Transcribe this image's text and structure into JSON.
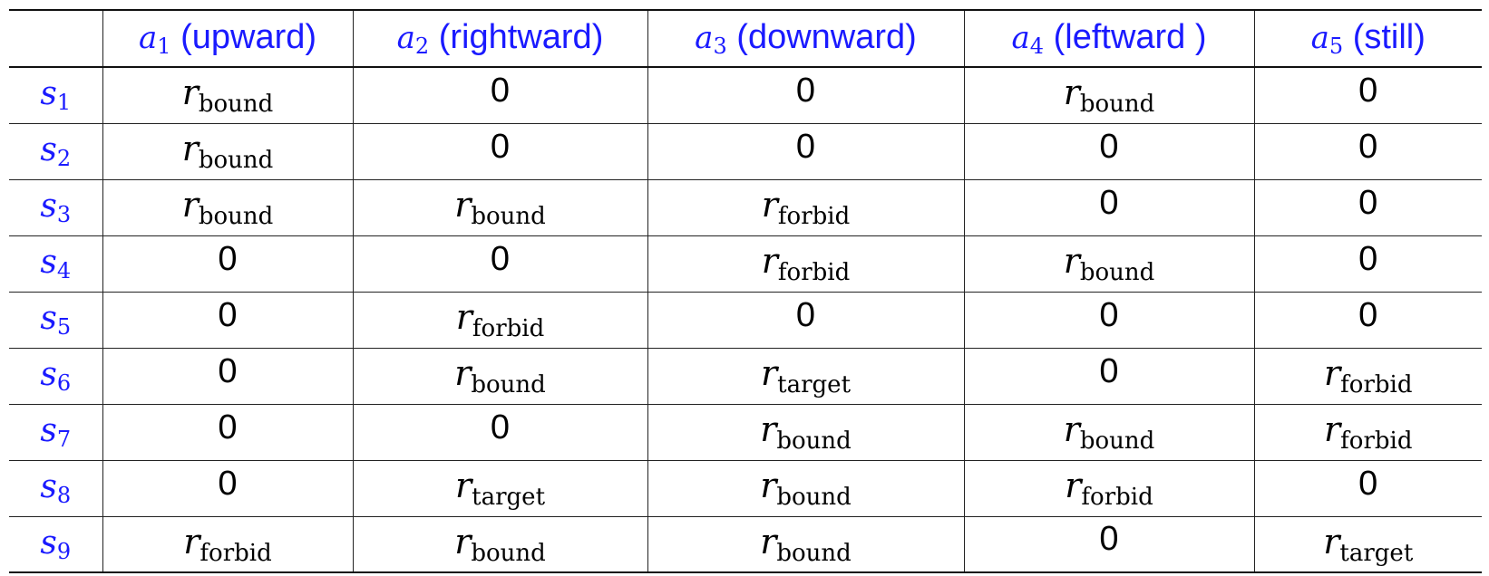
{
  "table": {
    "header_corner": "",
    "columns": [
      {
        "symbol": "a",
        "index": "1",
        "label": "(upward)"
      },
      {
        "symbol": "a",
        "index": "2",
        "label": "(rightward)"
      },
      {
        "symbol": "a",
        "index": "3",
        "label": "(downward)"
      },
      {
        "symbol": "a",
        "index": "4",
        "label": "(leftward )"
      },
      {
        "symbol": "a",
        "index": "5",
        "label": "(still)"
      }
    ],
    "rows": [
      {
        "symbol": "s",
        "index": "1",
        "cells": [
          {
            "type": "r",
            "main": "r",
            "sub": "bound"
          },
          {
            "type": "zero",
            "text": "0"
          },
          {
            "type": "zero",
            "text": "0"
          },
          {
            "type": "r",
            "main": "r",
            "sub": "bound"
          },
          {
            "type": "zero",
            "text": "0"
          }
        ]
      },
      {
        "symbol": "s",
        "index": "2",
        "cells": [
          {
            "type": "r",
            "main": "r",
            "sub": "bound"
          },
          {
            "type": "zero",
            "text": "0"
          },
          {
            "type": "zero",
            "text": "0"
          },
          {
            "type": "zero",
            "text": "0"
          },
          {
            "type": "zero",
            "text": "0"
          }
        ]
      },
      {
        "symbol": "s",
        "index": "3",
        "cells": [
          {
            "type": "r",
            "main": "r",
            "sub": "bound"
          },
          {
            "type": "r",
            "main": "r",
            "sub": "bound"
          },
          {
            "type": "r",
            "main": "r",
            "sub": "forbid"
          },
          {
            "type": "zero",
            "text": "0"
          },
          {
            "type": "zero",
            "text": "0"
          }
        ]
      },
      {
        "symbol": "s",
        "index": "4",
        "cells": [
          {
            "type": "zero",
            "text": "0"
          },
          {
            "type": "zero",
            "text": "0"
          },
          {
            "type": "r",
            "main": "r",
            "sub": "forbid"
          },
          {
            "type": "r",
            "main": "r",
            "sub": "bound"
          },
          {
            "type": "zero",
            "text": "0"
          }
        ]
      },
      {
        "symbol": "s",
        "index": "5",
        "cells": [
          {
            "type": "zero",
            "text": "0"
          },
          {
            "type": "r",
            "main": "r",
            "sub": "forbid"
          },
          {
            "type": "zero",
            "text": "0"
          },
          {
            "type": "zero",
            "text": "0"
          },
          {
            "type": "zero",
            "text": "0"
          }
        ]
      },
      {
        "symbol": "s",
        "index": "6",
        "cells": [
          {
            "type": "zero",
            "text": "0"
          },
          {
            "type": "r",
            "main": "r",
            "sub": "bound"
          },
          {
            "type": "r",
            "main": "r",
            "sub": "target"
          },
          {
            "type": "zero",
            "text": "0"
          },
          {
            "type": "r",
            "main": "r",
            "sub": "forbid"
          }
        ]
      },
      {
        "symbol": "s",
        "index": "7",
        "cells": [
          {
            "type": "zero",
            "text": "0"
          },
          {
            "type": "zero",
            "text": "0"
          },
          {
            "type": "r",
            "main": "r",
            "sub": "bound"
          },
          {
            "type": "r",
            "main": "r",
            "sub": "bound"
          },
          {
            "type": "r",
            "main": "r",
            "sub": "forbid"
          }
        ]
      },
      {
        "symbol": "s",
        "index": "8",
        "cells": [
          {
            "type": "zero",
            "text": "0"
          },
          {
            "type": "r",
            "main": "r",
            "sub": "target"
          },
          {
            "type": "r",
            "main": "r",
            "sub": "bound"
          },
          {
            "type": "r",
            "main": "r",
            "sub": "forbid"
          },
          {
            "type": "zero",
            "text": "0"
          }
        ]
      },
      {
        "symbol": "s",
        "index": "9",
        "cells": [
          {
            "type": "r",
            "main": "r",
            "sub": "forbid"
          },
          {
            "type": "r",
            "main": "r",
            "sub": "bound"
          },
          {
            "type": "r",
            "main": "r",
            "sub": "bound"
          },
          {
            "type": "zero",
            "text": "0"
          },
          {
            "type": "r",
            "main": "r",
            "sub": "target"
          }
        ]
      }
    ],
    "colors": {
      "header_text": "#1a1aff",
      "row_label_text": "#1a1aff",
      "cell_text": "#000000",
      "rule": "#111111"
    }
  }
}
